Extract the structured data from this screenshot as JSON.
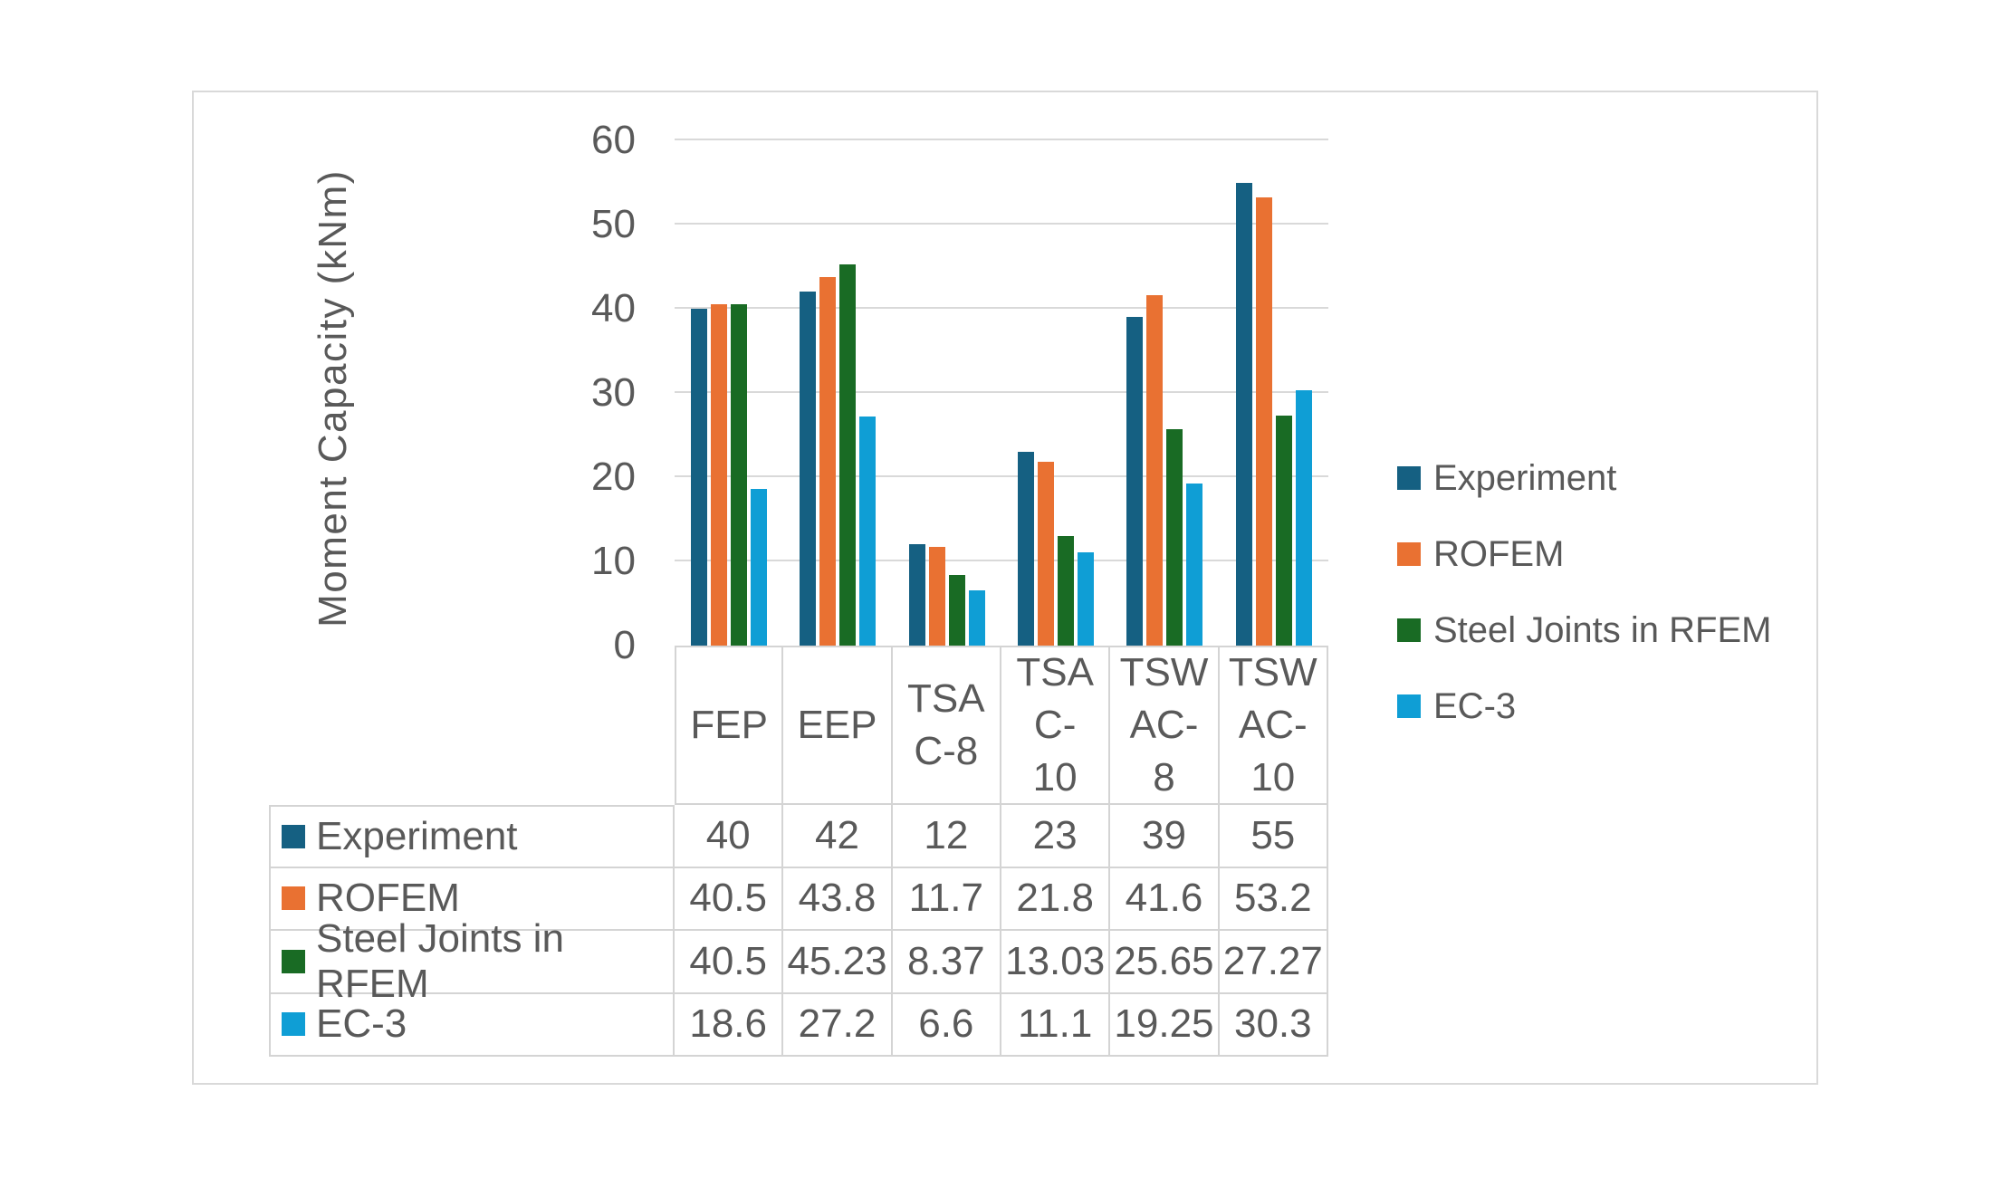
{
  "colors": {
    "text": "#595959",
    "gridline": "#d9d9d9",
    "table_border": "#d4d4d4",
    "panel_border": "#d9d9d9",
    "background": "#ffffff"
  },
  "chart_data": {
    "type": "bar",
    "title": "",
    "xlabel": "",
    "ylabel": "Moment Capacity (kNm)",
    "ylim": [
      0,
      60
    ],
    "yticks": [
      0,
      10,
      20,
      30,
      40,
      50,
      60
    ],
    "grid": "horizontal",
    "legend_position": "right",
    "data_table_shown": true,
    "categories": [
      "FEP",
      "EEP",
      "TSAC-8",
      "TSAC-10",
      "TSWAC-8",
      "TSWAC-10"
    ],
    "category_display_lines": [
      [
        "FEP"
      ],
      [
        "EEP"
      ],
      [
        "TSA",
        "C-8"
      ],
      [
        "TSA",
        "C-",
        "10"
      ],
      [
        "TSW",
        "AC-",
        "8"
      ],
      [
        "TSW",
        "AC-",
        "10"
      ]
    ],
    "series": [
      {
        "name": "Experiment",
        "color": "#156082",
        "values": [
          40,
          42,
          12,
          23,
          39,
          55
        ]
      },
      {
        "name": "ROFEM",
        "color": "#E97132",
        "values": [
          40.5,
          43.8,
          11.7,
          21.8,
          41.6,
          53.2
        ]
      },
      {
        "name": "Steel Joints in RFEM",
        "color": "#196B24",
        "values": [
          40.5,
          45.23,
          8.37,
          13.03,
          25.65,
          27.27
        ]
      },
      {
        "name": "EC-3",
        "color": "#0F9ED5",
        "values": [
          18.6,
          27.2,
          6.6,
          11.1,
          19.25,
          30.3
        ]
      }
    ]
  }
}
